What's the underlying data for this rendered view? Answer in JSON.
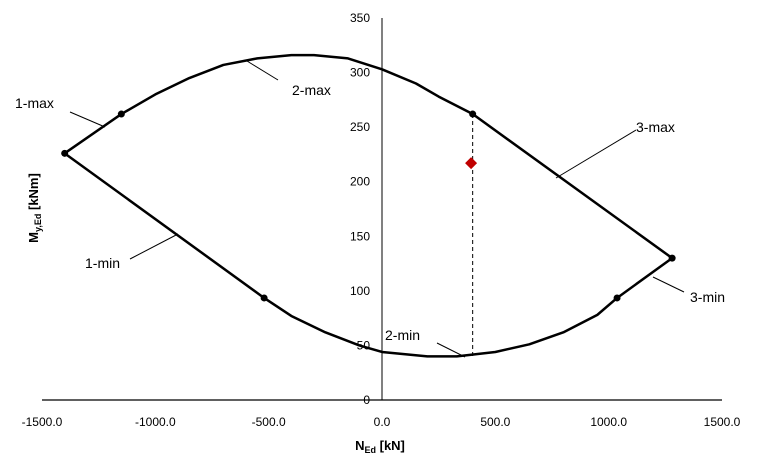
{
  "chart_data": {
    "type": "line",
    "title": "",
    "xlabel": {
      "main": "N",
      "sub": "Ed",
      "unit": " [kN]"
    },
    "ylabel": {
      "main": "M",
      "sub": "y,Ed",
      "unit": " [kNm]"
    },
    "xlim": [
      -1500,
      1500
    ],
    "ylim": [
      0,
      350
    ],
    "x_ticks": [
      -1500,
      -1000,
      -500,
      0,
      500,
      1000,
      1500
    ],
    "x_tick_labels": [
      "-1500.0",
      "-1000.0",
      "-500.0",
      "0.0",
      "500.0",
      "1000.0",
      "1500.0"
    ],
    "y_ticks": [
      0,
      50,
      100,
      150,
      200,
      250,
      300,
      350
    ],
    "y_tick_labels": [
      "0",
      "50",
      "100",
      "150",
      "200",
      "250",
      "300",
      "350"
    ],
    "grid": false,
    "upper_curve": [
      [
        -1400,
        226
      ],
      [
        -1150,
        262
      ],
      [
        -1000,
        280
      ],
      [
        -850,
        295
      ],
      [
        -700,
        307
      ],
      [
        -550,
        313
      ],
      [
        -400,
        316
      ],
      [
        -300,
        316
      ],
      [
        -150,
        313
      ],
      [
        0,
        303
      ],
      [
        150,
        290
      ],
      [
        250,
        278
      ],
      [
        400,
        262
      ],
      [
        1280,
        130
      ]
    ],
    "lower_curve": [
      [
        -1400,
        226
      ],
      [
        -520,
        93.5
      ],
      [
        -400,
        77
      ],
      [
        -250,
        62
      ],
      [
        -100,
        50
      ],
      [
        0,
        44
      ],
      [
        200,
        40
      ],
      [
        330,
        40
      ],
      [
        500,
        44
      ],
      [
        650,
        51
      ],
      [
        800,
        62
      ],
      [
        950,
        78
      ],
      [
        1037,
        93.5
      ],
      [
        1280,
        130
      ]
    ],
    "marked_points": [
      [
        -1400,
        226
      ],
      [
        -1150,
        262
      ],
      [
        -520,
        93.5
      ],
      [
        400,
        262
      ],
      [
        1280,
        130
      ],
      [
        1037,
        93.5
      ]
    ],
    "design_point": {
      "x": 393,
      "y": 217,
      "color": "#C00000",
      "marker": "diamond"
    },
    "dashed_line": {
      "x": 400,
      "y_from": 262,
      "y_to": 40
    },
    "annotations": [
      "1-max",
      "2-max",
      "3-max",
      "1-min",
      "2-min",
      "3-min"
    ]
  }
}
